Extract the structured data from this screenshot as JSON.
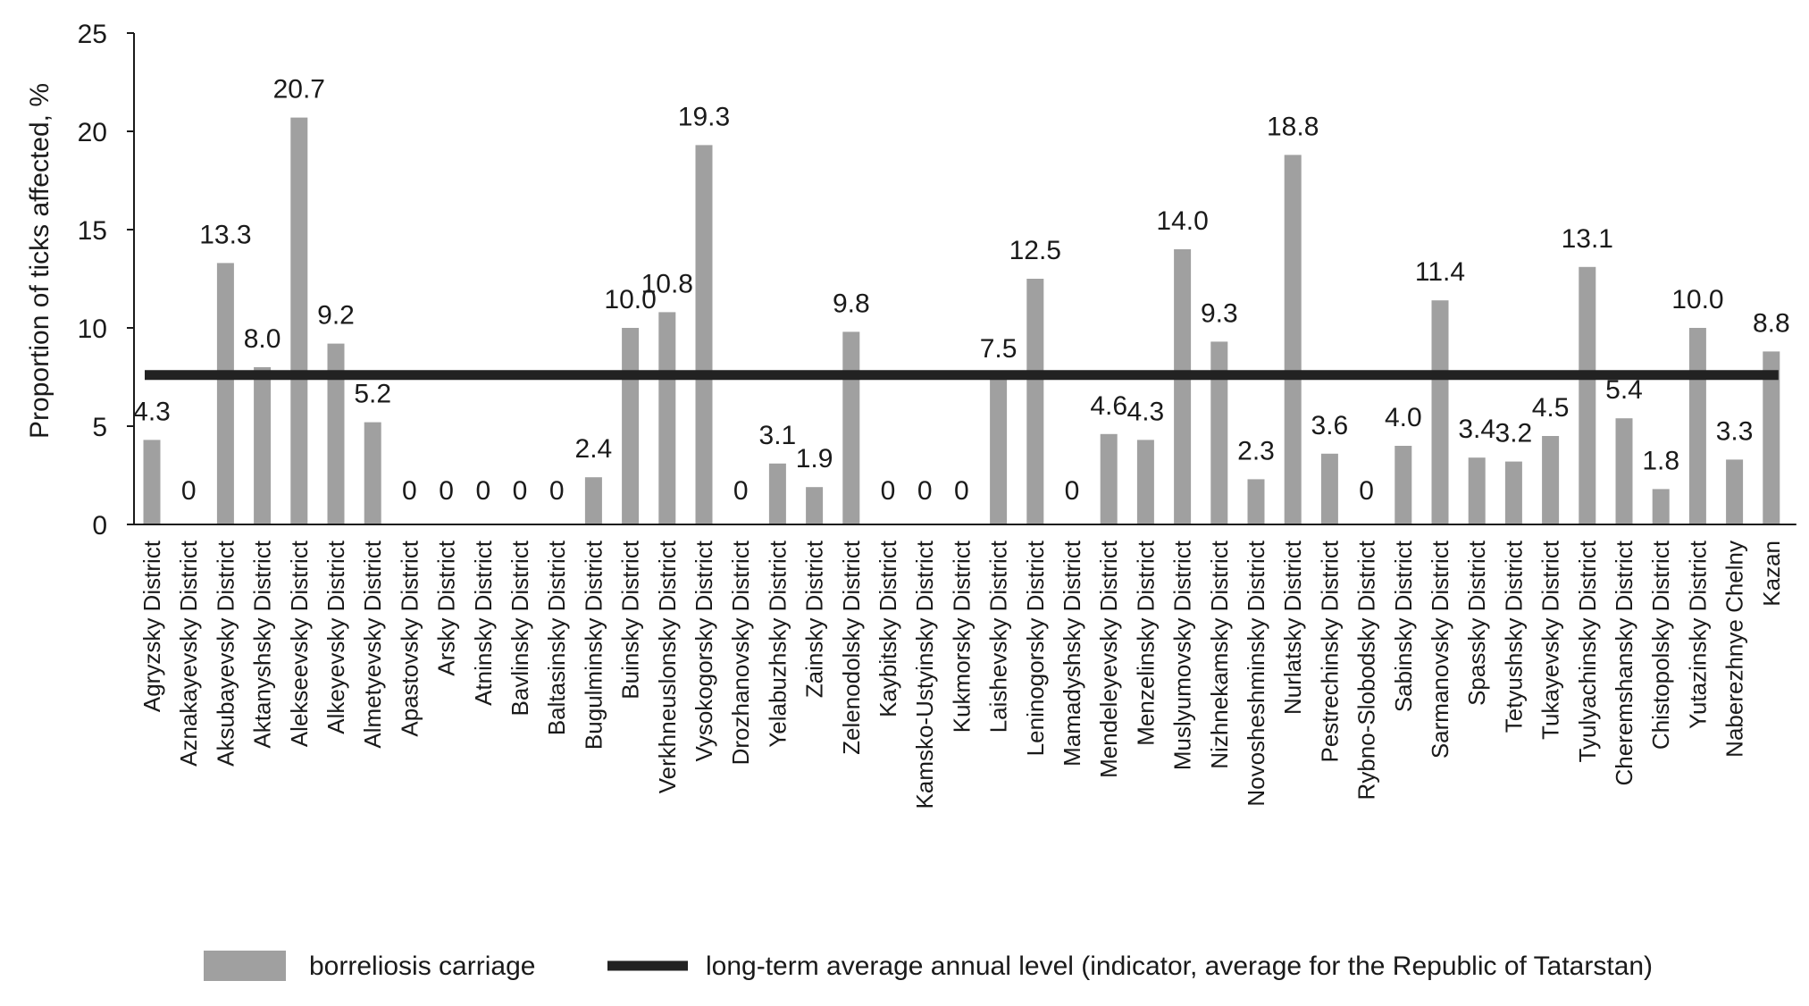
{
  "chart_data": {
    "type": "bar",
    "title": "",
    "xlabel": "",
    "ylabel": "Proportion of ticks affected, %",
    "ylim": [
      0,
      25
    ],
    "yticks": [
      "0",
      "5",
      "10",
      "15",
      "20",
      "25"
    ],
    "grid": false,
    "legend_position": "bottom",
    "categories": [
      "Agryzsky District",
      "Aznakayevsky District",
      "Aksubayevsky District",
      "Aktanyshsky District",
      "Alekseevsky District",
      "Alkeyevsky District",
      "Almetyevsky District",
      "Apastovsky District",
      "Arsky District",
      "Atninsky District",
      "Bavlinsky District",
      "Baltasinsky District",
      "Bugulminsky District",
      "Buinsky District",
      "Verkhneuslonsky District",
      "Vysokogorsky District",
      "Drozhanovsky District",
      "Yelabuzhsky District",
      "Zainsky District",
      "Zelenodolsky District",
      "Kaybitsky District",
      "Kamsko-Ustyinsky District",
      "Kukmorsky District",
      "Laishevsky District",
      "Leninogorsky District",
      "Mamadyshsky District",
      "Mendeleyevsky District",
      "Menzelinsky District",
      "Muslyumovsky District",
      "Nizhnekamsky District",
      "Novosheshminsky District",
      "Nurlatsky District",
      "Pestrechinsky District",
      "Rybno-Slobodsky District",
      "Sabinsky District",
      "Sarmanovsky District",
      "Spassky District",
      "Tetyushsky District",
      "Tukayevsky District",
      "Tyulyachinsky District",
      "Cheremshansky District",
      "Chistopolsky District",
      "Yutazinsky District",
      "Naberezhnye Chelny",
      "Kazan"
    ],
    "series": [
      {
        "name": "borreliosis carriage",
        "color": "#a0a0a0",
        "values": [
          4.3,
          0,
          13.3,
          8.0,
          20.7,
          9.2,
          5.2,
          0,
          0,
          0,
          0,
          0,
          2.4,
          10.0,
          10.8,
          19.3,
          0,
          3.1,
          1.9,
          9.8,
          0,
          0,
          0,
          7.5,
          12.5,
          0,
          4.6,
          4.3,
          14.0,
          9.3,
          2.3,
          18.8,
          3.6,
          0,
          4.0,
          11.4,
          3.4,
          3.2,
          4.5,
          13.1,
          5.4,
          1.8,
          10.0,
          3.3,
          8.8
        ],
        "labels": [
          "4.3",
          "0",
          "13.3",
          "8.0",
          "20.7",
          "9.2",
          "5.2",
          "0",
          "0",
          "0",
          "0",
          "0",
          "2.4",
          "10.0",
          "10.8",
          "19.3",
          "0",
          "3.1",
          "1.9",
          "9.8",
          "0",
          "0",
          "0",
          "7.5",
          "12.5",
          "0",
          "4.6",
          "4.3",
          "14.0",
          "9.3",
          "2.3",
          "18.8",
          "3.6",
          "0",
          "4.0",
          "11.4",
          "3.4",
          "3.2",
          "4.5",
          "13.1",
          "5.4",
          "1.8",
          "10.0",
          "3.3",
          "8.8"
        ]
      }
    ],
    "reference_line": {
      "name": "long-term average annual level (indicator, average for the Republic of Tatarstan)",
      "value": 7.6,
      "color": "#222222"
    }
  }
}
